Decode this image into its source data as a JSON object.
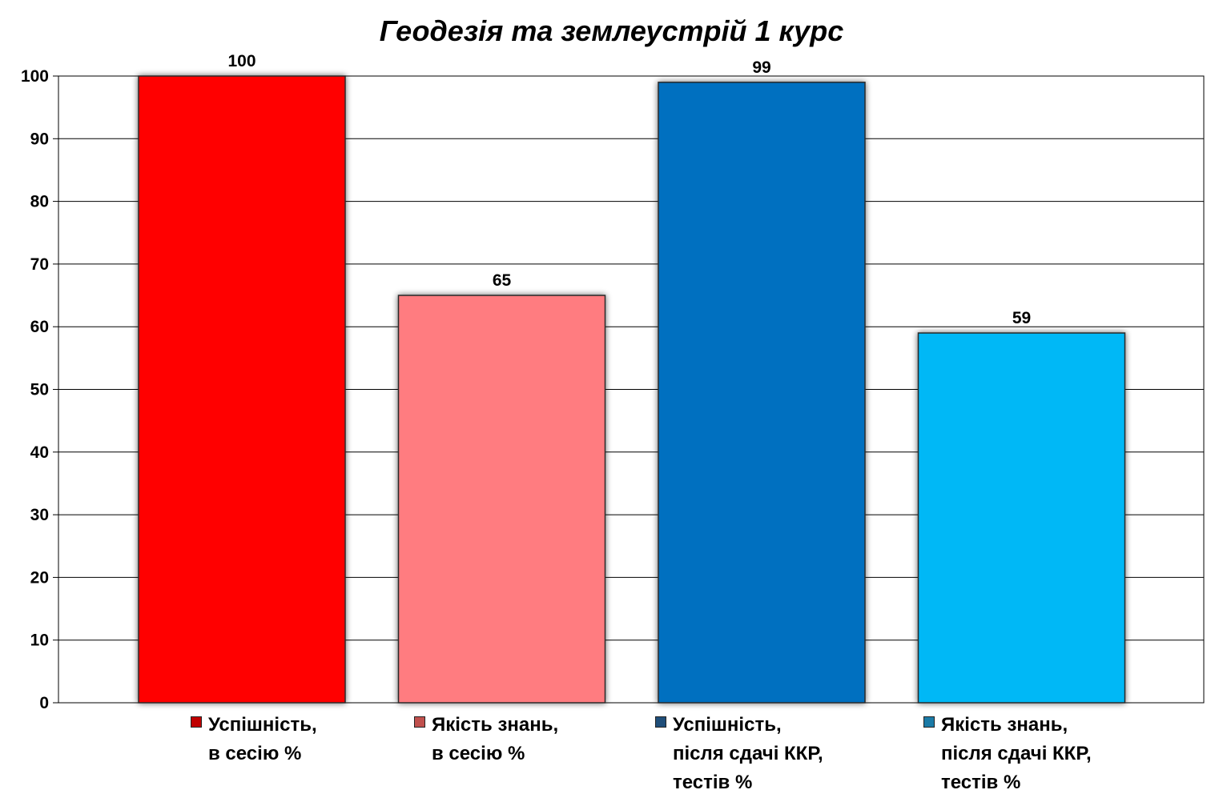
{
  "chart_data": {
    "type": "bar",
    "title": "Геодезія та землеустрій 1 курс",
    "categories": [
      "Успішність,\nв сесію %",
      "Якість знань,\nв сесію %",
      "Успішність,\nпісля сдачі ККР,\nтестів %",
      "Якість знань,\nпісля сдачі ККР,\nтестів %"
    ],
    "values": [
      100,
      65,
      99,
      59
    ],
    "data_labels": [
      "100",
      "65",
      "99",
      "59"
    ],
    "colors": [
      "#ff0000",
      "#ff7c80",
      "#0070c0",
      "#00b8f6"
    ],
    "legend_swatch_colors": [
      "#c00000",
      "#c0504d",
      "#1f4e79",
      "#1b7ba7"
    ],
    "ylim": [
      0,
      100
    ],
    "yticks": [
      0,
      10,
      20,
      30,
      40,
      50,
      60,
      70,
      80,
      90,
      100
    ],
    "ytick_labels": [
      "0",
      "10",
      "20",
      "30",
      "40",
      "50",
      "60",
      "70",
      "80",
      "90",
      "100"
    ],
    "xlabel": "",
    "ylabel": "",
    "grid": true,
    "legend_position": "bottom"
  }
}
